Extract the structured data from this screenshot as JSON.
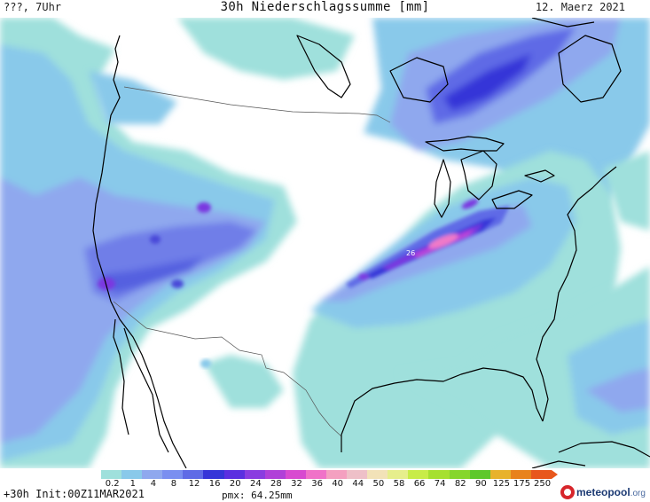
{
  "header": {
    "left": "???, 7Uhr",
    "title": "30h Niederschlagssumme [mm]",
    "date": "12. Maerz 2021"
  },
  "map": {
    "max_label": "26",
    "colors": {
      "background": "#ffffff",
      "light_teal": "#9fe0dc",
      "cyan_blue": "#87c9ea",
      "light_blue": "#8fa8ee",
      "mid_blue": "#5f6be6",
      "dark_blue": "#3535d8",
      "purple": "#7a38e0",
      "magenta": "#c045d8",
      "pink": "#f07ac8",
      "coastline": "#000000",
      "border": "#555555"
    }
  },
  "legend": {
    "ticks": [
      "0.2",
      "1",
      "4",
      "8",
      "12",
      "16",
      "20",
      "24",
      "28",
      "32",
      "36",
      "40",
      "44",
      "50",
      "58",
      "66",
      "74",
      "82",
      "90",
      "125",
      "175",
      "250"
    ],
    "colors": [
      "#9fe0dc",
      "#89c9ea",
      "#8fa8ee",
      "#7a8ff0",
      "#5f6be6",
      "#3535d8",
      "#5b2fe0",
      "#8a3ce0",
      "#b040d8",
      "#d84ad0",
      "#f072c8",
      "#f4a0c0",
      "#eec0c8",
      "#f2e2b8",
      "#e6ee8c",
      "#c8ec48",
      "#a6e030",
      "#86d62c",
      "#5ec82c",
      "#e8b22c",
      "#e8821c",
      "#e8571c"
    ]
  },
  "footer": {
    "run": "+30h Init:00Z11MAR2021",
    "pmx": "pmx: 64.25mm"
  },
  "logo": {
    "name": "meteopool",
    "tld": ".org"
  }
}
